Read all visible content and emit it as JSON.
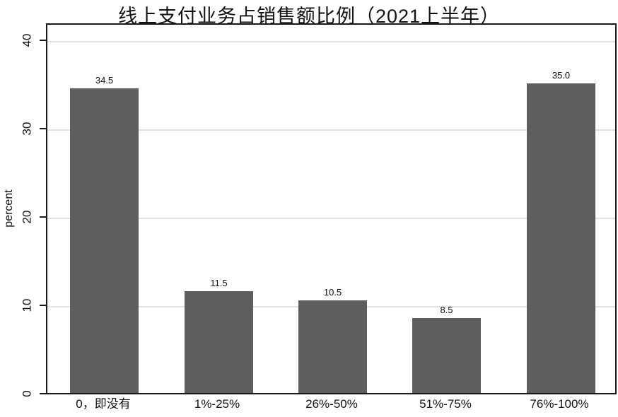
{
  "title": "线上支付业务占销售额比例（2021上半年）",
  "chart_data": {
    "type": "bar",
    "title": "线上支付业务占销售额比例（2021上半年）",
    "categories": [
      "0，即没有",
      "1%-25%",
      "26%-50%",
      "51%-75%",
      "76%-100%"
    ],
    "values": [
      34.5,
      11.5,
      10.5,
      8.5,
      35.0
    ],
    "value_labels": [
      "34.5",
      "11.5",
      "10.5",
      "8.5",
      "35.0"
    ],
    "xlabel": "",
    "ylabel": "percent",
    "ylim": [
      0,
      42
    ],
    "yticks": [
      0,
      10,
      20,
      30,
      40
    ],
    "grid": true,
    "legend": "none",
    "colors": {
      "bar": "#5e5e5e",
      "gridline": "#e3e3e3",
      "axis": "#1a1a1a",
      "text": "#111111",
      "background": "#ffffff"
    }
  }
}
